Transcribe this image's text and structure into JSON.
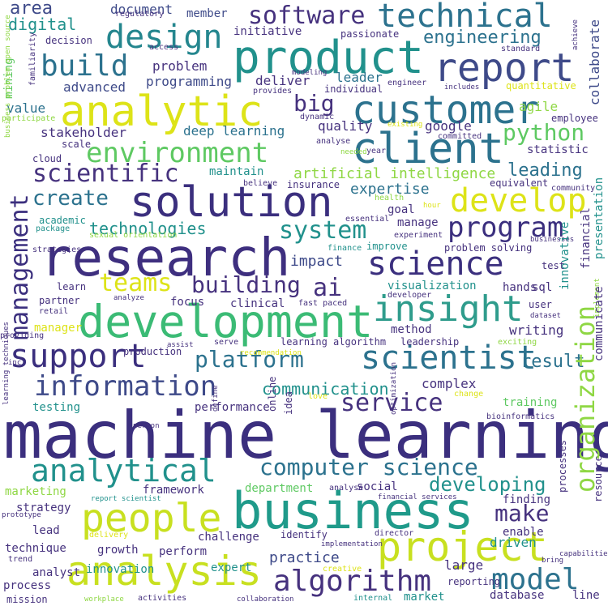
{
  "words": {
    "machine_learning": "machine learning",
    "business": "business",
    "research": "research",
    "development": "development",
    "product": "product",
    "analytic": "analytic",
    "solution": "solution",
    "customer": "customer",
    "report": "report",
    "client": "client",
    "analysis": "analysis",
    "people": "people",
    "project": "project",
    "technical": "technical",
    "science": "science",
    "scientist": "scientist",
    "insight": "insight",
    "design": "design",
    "develop": "develop",
    "program": "program",
    "support": "support",
    "information": "information",
    "analytical": "analytical",
    "environment": "environment",
    "model": "model",
    "algorithm": "algorithm",
    "build": "build",
    "software": "software",
    "teams": "teams",
    "ai": "ai",
    "management": "management",
    "organization": "organization",
    "system": "system",
    "building": "building",
    "platform": "platform",
    "computer_science": "computer science",
    "python": "python",
    "scientific": "scientific",
    "big": "big",
    "service": "service",
    "make": "make",
    "create": "create",
    "developing": "developing",
    "engineering": "engineering",
    "communication": "communication",
    "technologies": "technologies",
    "artificial_intelligence": "artificial intelligence",
    "leading": "leading",
    "result": "result",
    "expertise": "expertise",
    "impact": "impact",
    "practice": "practice",
    "area": "area",
    "digital": "digital",
    "document": "document",
    "member": "member",
    "initiative": "initiative",
    "passionate": "passionate",
    "regulatory": "regulatory",
    "decision": "decision",
    "access": "access",
    "standard": "standard",
    "achieve": "achieve",
    "collaborate": "collaborate",
    "problem": "problem",
    "programming": "programming",
    "advanced": "advanced",
    "deliver": "deliver",
    "leader": "leader",
    "engineer": "engineer",
    "includes": "includes",
    "quantitative": "quantitative",
    "individual": "individual",
    "provides": "provides",
    "modeling": "modeling",
    "value": "value",
    "mining": "mining",
    "familiarity": "familiarity",
    "participate": "participate",
    "dynamic": "dynamic",
    "agile": "agile",
    "employee": "employee",
    "quality": "quality",
    "google": "google",
    "committed": "committed",
    "existing": "existing",
    "stakeholder": "stakeholder",
    "deep_learning": "deep learning",
    "analyse": "analyse",
    "needed": "needed",
    "year": "year",
    "statistic": "statistic",
    "cloud": "cloud",
    "scale": "scale",
    "maintain": "maintain",
    "believe": "believe",
    "insurance": "insurance",
    "equivalent": "equivalent",
    "community": "community",
    "health": "health",
    "hour": "hour",
    "goal": "goal",
    "manage": "manage",
    "academic": "academic",
    "essential": "essential",
    "package": "package",
    "experiment": "experiment",
    "sexual_orientation": "sexual orientation",
    "finance": "finance",
    "improve": "improve",
    "problem_solving": "problem solving",
    "businesses": "businesses",
    "strategies": "strategies",
    "business_problem_open_source": "business problem open source",
    "test": "test",
    "financial": "financial",
    "presentation": "presentation",
    "learn": "learn",
    "hands": "hands",
    "visualization": "visualization",
    "sql": "sql",
    "partner": "partner",
    "analyze": "analyze",
    "focus": "focus",
    "fast_paced": "fast paced",
    "developer": "developer",
    "retail": "retail",
    "clinical": "clinical",
    "user": "user",
    "innovative": "innovative",
    "dataset": "dataset",
    "manager": "manager",
    "method": "method",
    "writing": "writing",
    "providing": "providing",
    "serve": "serve",
    "assist": "assist",
    "leadership": "leadership",
    "learning_algorithm": "learning algorithm",
    "exciting": "exciting",
    "implement": "implement",
    "inc": "inc",
    "production": "production",
    "recommendation": "recommendation",
    "complex": "complex",
    "communicate": "communicate",
    "resource": "resource",
    "testing": "testing",
    "performance": "performance",
    "love": "love",
    "change": "change",
    "training": "training",
    "learning_techniques": "learning techniques",
    "person": "person",
    "define": "define",
    "bioinformatics": "bioinformatics",
    "online": "online",
    "idea": "idea",
    "optimization": "optimization",
    "framework": "framework",
    "marketing": "marketing",
    "department": "department",
    "social": "social",
    "finding": "finding",
    "processes": "processes",
    "report_scientist": "report scientist",
    "financial_services": "financial services",
    "strategy": "strategy",
    "prototype": "prototype",
    "lead": "lead",
    "challenge": "challenge",
    "identify": "identify",
    "director": "director",
    "enable": "enable",
    "delivery": "delivery",
    "implementation": "implementation",
    "driven": "driven",
    "technique": "technique",
    "growth": "growth",
    "perform": "perform",
    "trend": "trend",
    "capabilities": "capabilities",
    "bring": "bring",
    "analyst": "analyst",
    "creative": "creative",
    "large": "large",
    "process": "process",
    "innovation": "innovation",
    "expert": "expert",
    "reporting": "reporting",
    "mission": "mission",
    "workplace": "workplace",
    "activities": "activities",
    "collaboration": "collaboration",
    "internal": "internal",
    "market": "market",
    "database": "database",
    "line": "line"
  },
  "colors": {
    "navy": "#3b2f7e",
    "dark_purple": "#440154",
    "indigo": "#46327e",
    "blue": "#365c8d",
    "slate": "#2c728e",
    "teal": "#21918c",
    "sea": "#1fa187",
    "green": "#3bbb75",
    "light_green": "#5ec962",
    "lime": "#8fd744",
    "yellow": "#c8e020",
    "gold": "#dde318"
  }
}
